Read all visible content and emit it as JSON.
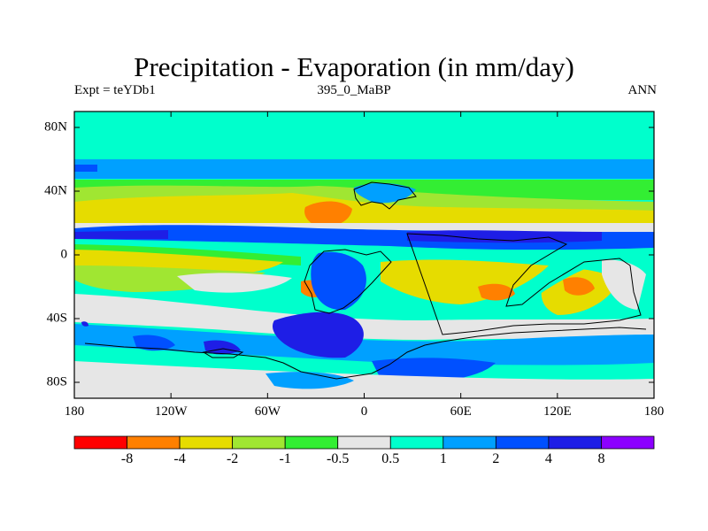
{
  "figure": {
    "title": "Precipitation - Evaporation (in mm/day)",
    "left_label": "Expt = teYDb1",
    "center_label": "395_0_MaBP",
    "right_label": "ANN"
  },
  "axes": {
    "lon_ticks": [
      "180",
      "120W",
      "60W",
      "0",
      "60E",
      "120E",
      "180"
    ],
    "lon_values": [
      -180,
      -120,
      -60,
      0,
      60,
      120,
      180
    ],
    "lat_ticks": [
      "80N",
      "40N",
      "0",
      "40S",
      "80S"
    ],
    "lat_values": [
      80,
      40,
      0,
      -40,
      -80
    ],
    "lon_range": [
      -180,
      180
    ],
    "lat_range": [
      -90,
      90
    ]
  },
  "colorbar": {
    "colors": [
      "#ff0000",
      "#ff8000",
      "#e6dc00",
      "#a0e632",
      "#33ee33",
      "#e6e6e6",
      "#00ffcc",
      "#00a0ff",
      "#0050ff",
      "#1e1ee6",
      "#8c00ff"
    ],
    "labels": [
      "-8",
      "-4",
      "-2",
      "-1",
      "-0.5",
      "0.5",
      "1",
      "2",
      "4",
      "8"
    ]
  }
}
